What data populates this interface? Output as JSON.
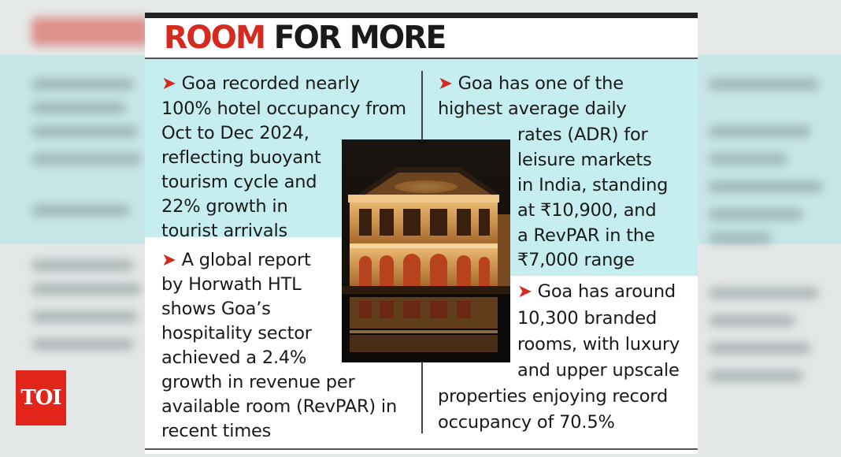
{
  "brand": {
    "logo_text": "TOI"
  },
  "headline": {
    "part1": "ROOM",
    "part2": "FOR MORE"
  },
  "colors": {
    "accent_red": "#d42a1f",
    "panel_cyan": "#c6eef0",
    "logo_red": "#e1251b"
  },
  "bullet_icon": "arrowhead-icon",
  "bullets": [
    {
      "lines": [
        "Goa recorded nearly",
        "100% hotel occupancy from",
        "Oct to Dec 2024,",
        "reflecting buoyant",
        "tourism cycle and",
        "22% growth in",
        "tourist arrivals"
      ]
    },
    {
      "lines": [
        "A global report",
        "by Horwath HTL",
        "shows Goa’s",
        "hospitality sector",
        "achieved a 2.4%",
        "growth in revenue per",
        "available room (RevPAR) in",
        "recent times"
      ]
    },
    {
      "lines": [
        "Goa has one of the",
        "highest average daily",
        "rates (ADR) for",
        "leisure markets",
        "in India, standing",
        "at ₹10,900, and",
        "a RevPAR in the",
        "₹7,000 range"
      ]
    },
    {
      "lines": [
        "Goa has around",
        "10,300 branded",
        "rooms, with luxury",
        "and upper upscale",
        "properties enjoying record",
        "occupancy of 70.5%"
      ]
    }
  ]
}
